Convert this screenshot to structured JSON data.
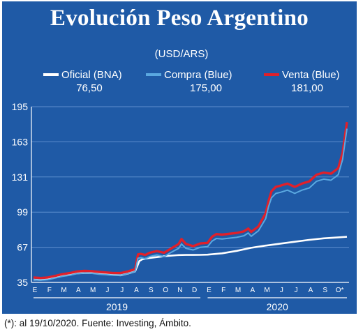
{
  "title": "Evolución Peso Argentino",
  "chart_data": {
    "type": "line",
    "unit": "(USD/ARS)",
    "ylim": [
      35,
      195
    ],
    "yticks": [
      35,
      67,
      99,
      131,
      163,
      195
    ],
    "month_labels": [
      "E",
      "F",
      "M",
      "A",
      "M",
      "J",
      "J",
      "A",
      "S",
      "O",
      "N",
      "D",
      "E",
      "F",
      "M",
      "A",
      "M",
      "J",
      "J",
      "A",
      "S",
      "O*"
    ],
    "years": [
      "2019",
      "2020"
    ],
    "legend": [
      {
        "name": "Oficial (BNA)",
        "value": "76,50",
        "color": "#ffffff"
      },
      {
        "name": "Compra (Blue)",
        "value": "175,00",
        "color": "#5aa8e0"
      },
      {
        "name": "Venta (Blue)",
        "value": "181,00",
        "color": "#e0202a"
      }
    ],
    "series": [
      {
        "name": "Oficial (BNA)",
        "x": [
          0,
          0.5,
          1,
          1.5,
          2,
          2.5,
          3,
          3.5,
          4,
          4.5,
          5,
          5.5,
          6,
          6.5,
          7,
          7.3,
          7.5,
          8,
          9,
          10,
          10.5,
          11,
          11.5,
          12,
          13,
          14,
          15,
          16,
          17,
          18,
          19,
          20,
          21,
          21.6
        ],
        "y": [
          37.5,
          37.2,
          38.2,
          39.5,
          41.0,
          42.0,
          43.3,
          43.5,
          43.6,
          43.0,
          42.5,
          41.8,
          41.5,
          43.0,
          45.0,
          54.5,
          56.0,
          57.3,
          58.9,
          59.9,
          60.0,
          60.0,
          60.1,
          60.3,
          61.5,
          63.7,
          66.5,
          68.5,
          70.3,
          72.0,
          73.7,
          75.1,
          76.0,
          76.5
        ]
      },
      {
        "name": "Venta (Blue)",
        "x": [
          0,
          0.5,
          1,
          1.5,
          2,
          2.5,
          3,
          3.5,
          4,
          4.5,
          5,
          5.5,
          6,
          6.5,
          7,
          7.2,
          7.4,
          7.7,
          8,
          8.5,
          9,
          9.5,
          10,
          10.2,
          10.5,
          11,
          11.5,
          12,
          12.3,
          12.6,
          13,
          14,
          14.5,
          14.8,
          15,
          15.5,
          16,
          16.2,
          16.4,
          16.7,
          17,
          17.5,
          18,
          18.5,
          19,
          19.5,
          20,
          20.5,
          21,
          21.3,
          21.6
        ],
        "y": [
          39.5,
          39.0,
          39.5,
          41.0,
          42.5,
          43.5,
          45.0,
          45.5,
          45.3,
          44.5,
          44.0,
          43.5,
          43.5,
          45.0,
          47.0,
          60.5,
          61.0,
          60.0,
          62.0,
          63.5,
          62.0,
          66.0,
          70.0,
          74.5,
          70.0,
          68.0,
          70.5,
          71.0,
          76.5,
          79.0,
          78.5,
          80.0,
          81.5,
          84.0,
          81.0,
          86.0,
          98.0,
          109.0,
          118.0,
          122.0,
          123.0,
          125.0,
          122.0,
          125.0,
          127.0,
          133.0,
          135.0,
          134.0,
          139.0,
          153.0,
          181.0
        ]
      },
      {
        "name": "Compra (Blue)",
        "x": [
          0,
          0.5,
          1,
          1.5,
          2,
          2.5,
          3,
          3.5,
          4,
          4.5,
          5,
          5.5,
          6,
          6.5,
          7,
          7.2,
          7.4,
          7.7,
          8,
          8.5,
          9,
          9.5,
          10,
          10.2,
          10.5,
          11,
          11.5,
          12,
          12.3,
          12.6,
          13,
          14,
          14.5,
          14.8,
          15,
          15.5,
          16,
          16.2,
          16.4,
          16.7,
          17,
          17.5,
          18,
          18.5,
          19,
          19.5,
          20,
          20.5,
          21,
          21.3,
          21.6
        ],
        "y": [
          37.5,
          37.0,
          37.5,
          39.0,
          40.5,
          41.5,
          43.0,
          43.5,
          43.3,
          42.5,
          42.0,
          41.5,
          41.5,
          43.0,
          45.0,
          57.0,
          57.5,
          56.5,
          58.5,
          60.0,
          58.5,
          62.5,
          66.0,
          70.0,
          66.0,
          64.5,
          67.0,
          67.5,
          72.5,
          75.0,
          74.5,
          76.0,
          77.5,
          80.0,
          77.0,
          82.0,
          93.0,
          104.0,
          112.0,
          116.0,
          117.0,
          119.0,
          116.0,
          119.0,
          121.0,
          127.0,
          129.0,
          128.0,
          133.0,
          147.0,
          175.0
        ]
      }
    ]
  },
  "footnote": "(*): al 19/10/2020. Fuente: Investing, Ámbito."
}
